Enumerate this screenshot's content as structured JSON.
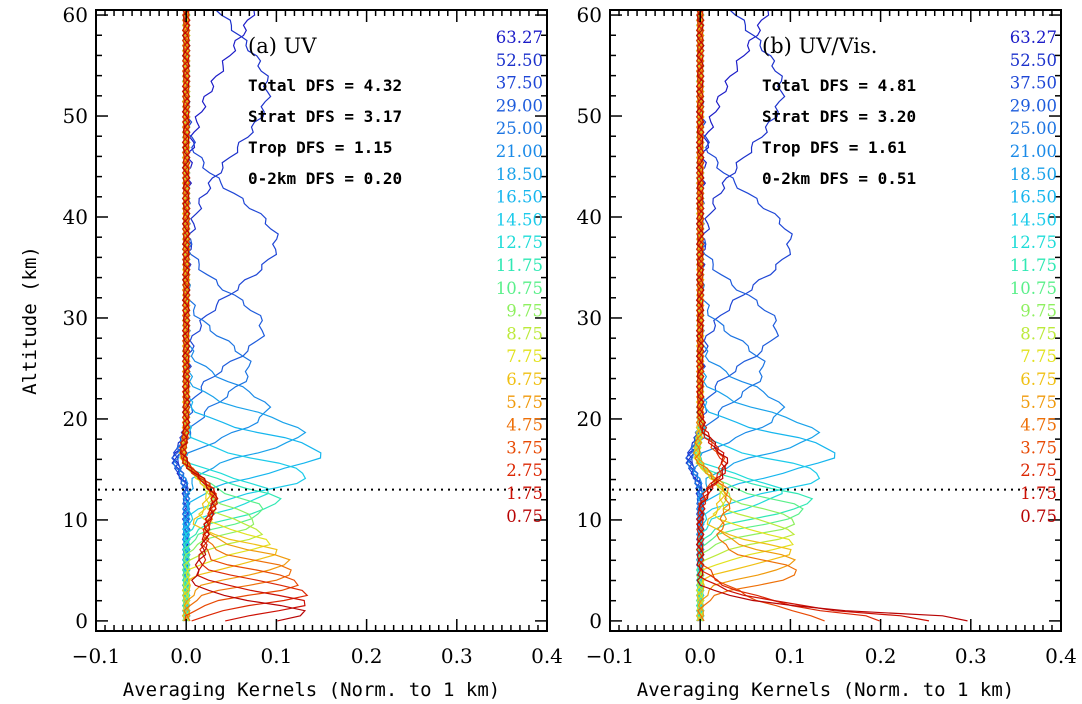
{
  "chart_data": [
    {
      "type": "line",
      "panel_label": "(a) UV",
      "xlabel": "Averaging Kernels (Norm. to 1 km)",
      "ylabel": "Altitude (km)",
      "xlim": [
        -0.1,
        0.4
      ],
      "ylim": [
        -1,
        60.5
      ],
      "xticks": [
        -0.1,
        0.0,
        0.1,
        0.2,
        0.3,
        0.4
      ],
      "xtick_labels": [
        "−0.1",
        "0.0",
        "0.1",
        "0.2",
        "0.3",
        "0.4"
      ],
      "yticks": [
        0,
        10,
        20,
        30,
        40,
        50,
        60
      ],
      "ytick_labels": [
        "0",
        "10",
        "20",
        "30",
        "40",
        "50",
        "60"
      ],
      "dfs": {
        "total": "Total DFS = 4.32",
        "strat": "Strat DFS = 3.17",
        "trop": "Trop DFS = 1.15",
        "low": "0-2km DFS = 0.20"
      },
      "tropopause_altitude_km": 13,
      "legend_placement": "right",
      "legend": [
        "63.27",
        "52.50",
        "37.50",
        "29.00",
        "25.00",
        "21.00",
        "18.50",
        "16.50",
        "14.50",
        "12.75",
        "11.75",
        "10.75",
        "9.75",
        "8.75",
        "7.75",
        "6.75",
        "5.75",
        "4.75",
        "3.75",
        "2.75",
        "1.75",
        "0.75"
      ],
      "legend_colors": [
        "#1c1cc8",
        "#1c32cc",
        "#1e46d6",
        "#1e5cdc",
        "#1c74e2",
        "#1a8ae8",
        "#1aa2ea",
        "#16b6ee",
        "#1ccbea",
        "#20dcd8",
        "#30e8b4",
        "#5af08a",
        "#8ef060",
        "#bcea3a",
        "#e2e21e",
        "#f0c014",
        "#f09a0c",
        "#ee7008",
        "#e84a04",
        "#dc2804",
        "#cc1004",
        "#b80404"
      ],
      "profiles": [
        {
          "altitude": 63.27,
          "peak_x": 0.08,
          "shape": "peaked"
        },
        {
          "altitude": 52.5,
          "peak_x": 0.09,
          "shape": "peaked"
        },
        {
          "altitude": 37.5,
          "peak_x": 0.1,
          "shape": "peaked"
        },
        {
          "altitude": 29.0,
          "peak_x": 0.085,
          "shape": "peaked"
        },
        {
          "altitude": 25.0,
          "peak_x": 0.07,
          "shape": "peaked"
        },
        {
          "altitude": 21.0,
          "peak_x": 0.09,
          "shape": "peaked"
        },
        {
          "altitude": 18.5,
          "peak_x": 0.13,
          "shape": "peaked"
        },
        {
          "altitude": 16.5,
          "peak_x": 0.16,
          "shape": "peaked"
        },
        {
          "altitude": 14.5,
          "peak_x": 0.14,
          "shape": "peaked"
        },
        {
          "altitude": 12.75,
          "peak_x": 0.09,
          "shape": "peaked"
        },
        {
          "altitude": 11.75,
          "peak_x": 0.08,
          "shape": "peaked"
        },
        {
          "altitude": 10.75,
          "peak_x": 0.07,
          "shape": "peaked"
        },
        {
          "altitude": 9.75,
          "peak_x": 0.07,
          "shape": "peaked"
        },
        {
          "altitude": 8.75,
          "peak_x": 0.08,
          "shape": "peaked"
        },
        {
          "altitude": 7.75,
          "peak_x": 0.09,
          "shape": "peaked"
        },
        {
          "altitude": 6.75,
          "peak_x": 0.1,
          "shape": "peaked"
        },
        {
          "altitude": 5.75,
          "peak_x": 0.1,
          "shape": "peaked"
        },
        {
          "altitude": 4.75,
          "peak_x": 0.11,
          "shape": "peaked"
        },
        {
          "altitude": 3.75,
          "peak_x": 0.12,
          "shape": "peaked"
        },
        {
          "altitude": 2.75,
          "peak_x": 0.13,
          "shape": "peaked"
        },
        {
          "altitude": 1.75,
          "peak_x": 0.13,
          "shape": "peaked"
        },
        {
          "altitude": 0.75,
          "peak_x": 0.13,
          "shape": "peaked"
        }
      ]
    },
    {
      "type": "line",
      "panel_label": "(b) UV/Vis.",
      "xlabel": "Averaging Kernels (Norm. to 1 km)",
      "ylabel": "",
      "xlim": [
        -0.1,
        0.4
      ],
      "ylim": [
        -1,
        60.5
      ],
      "xticks": [
        -0.1,
        0.0,
        0.1,
        0.2,
        0.3,
        0.4
      ],
      "xtick_labels": [
        "−0.1",
        "0.0",
        "0.1",
        "0.2",
        "0.3",
        "0.4"
      ],
      "yticks": [
        0,
        10,
        20,
        30,
        40,
        50,
        60
      ],
      "ytick_labels": [
        "0",
        "10",
        "20",
        "30",
        "40",
        "50",
        "60"
      ],
      "dfs": {
        "total": "Total DFS = 4.81",
        "strat": "Strat DFS = 3.20",
        "trop": "Trop DFS = 1.61",
        "low": "0-2km DFS = 0.51"
      },
      "tropopause_altitude_km": 13,
      "legend_placement": "right",
      "legend": [
        "63.27",
        "52.50",
        "37.50",
        "29.00",
        "25.00",
        "21.00",
        "18.50",
        "16.50",
        "14.50",
        "12.75",
        "11.75",
        "10.75",
        "9.75",
        "8.75",
        "7.75",
        "6.75",
        "5.75",
        "4.75",
        "3.75",
        "2.75",
        "1.75",
        "0.75"
      ],
      "legend_colors": [
        "#1c1cc8",
        "#1c32cc",
        "#1e46d6",
        "#1e5cdc",
        "#1c74e2",
        "#1a8ae8",
        "#1aa2ea",
        "#16b6ee",
        "#1ccbea",
        "#20dcd8",
        "#30e8b4",
        "#5af08a",
        "#8ef060",
        "#bcea3a",
        "#e2e21e",
        "#f0c014",
        "#f09a0c",
        "#ee7008",
        "#e84a04",
        "#dc2804",
        "#cc1004",
        "#b80404"
      ],
      "profiles": [
        {
          "altitude": 63.27,
          "peak_x": 0.08,
          "shape": "peaked"
        },
        {
          "altitude": 52.5,
          "peak_x": 0.09,
          "shape": "peaked"
        },
        {
          "altitude": 37.5,
          "peak_x": 0.1,
          "shape": "peaked"
        },
        {
          "altitude": 29.0,
          "peak_x": 0.085,
          "shape": "peaked"
        },
        {
          "altitude": 25.0,
          "peak_x": 0.07,
          "shape": "peaked"
        },
        {
          "altitude": 21.0,
          "peak_x": 0.09,
          "shape": "peaked"
        },
        {
          "altitude": 18.5,
          "peak_x": 0.13,
          "shape": "peaked"
        },
        {
          "altitude": 16.5,
          "peak_x": 0.16,
          "shape": "peaked"
        },
        {
          "altitude": 14.5,
          "peak_x": 0.14,
          "shape": "peaked"
        },
        {
          "altitude": 12.75,
          "peak_x": 0.09,
          "shape": "peaked"
        },
        {
          "altitude": 11.75,
          "peak_x": 0.1,
          "shape": "peaked"
        },
        {
          "altitude": 10.75,
          "peak_x": 0.1,
          "shape": "peaked"
        },
        {
          "altitude": 9.75,
          "peak_x": 0.1,
          "shape": "peaked"
        },
        {
          "altitude": 8.75,
          "peak_x": 0.1,
          "shape": "peaked"
        },
        {
          "altitude": 7.75,
          "peak_x": 0.1,
          "shape": "peaked"
        },
        {
          "altitude": 6.75,
          "peak_x": 0.1,
          "shape": "peaked"
        },
        {
          "altitude": 5.75,
          "peak_x": 0.09,
          "shape": "peaked"
        },
        {
          "altitude": 4.75,
          "peak_x": 0.1,
          "shape": "peaked"
        },
        {
          "altitude": 3.75,
          "peak_x": 0.14,
          "shape": "surface"
        },
        {
          "altitude": 2.75,
          "peak_x": 0.2,
          "shape": "surface"
        },
        {
          "altitude": 1.75,
          "peak_x": 0.25,
          "shape": "surface"
        },
        {
          "altitude": 0.75,
          "peak_x": 0.3,
          "shape": "surface"
        }
      ]
    }
  ]
}
